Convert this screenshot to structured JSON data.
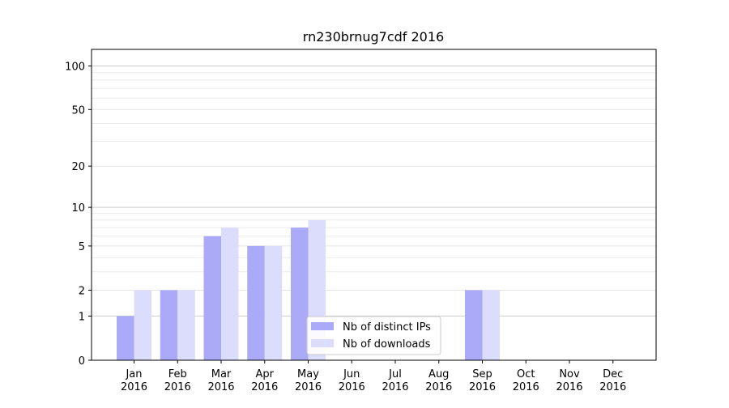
{
  "chart_data": {
    "type": "bar",
    "title": "rn230brnug7cdf 2016",
    "xlabel": "",
    "ylabel": "",
    "yscale": "symlog",
    "ylim": [
      0,
      130
    ],
    "y_ticks": [
      0,
      1,
      2,
      5,
      10,
      20,
      50,
      100
    ],
    "categories": [
      "Jan\n2016",
      "Feb\n2016",
      "Mar\n2016",
      "Apr\n2016",
      "May\n2016",
      "Jun\n2016",
      "Jul\n2016",
      "Aug\n2016",
      "Sep\n2016",
      "Oct\n2016",
      "Nov\n2016",
      "Dec\n2016"
    ],
    "series": [
      {
        "name": "Nb of distinct IPs",
        "color": "#aaaaf8",
        "values": [
          1,
          2,
          6,
          5,
          7,
          0,
          0,
          0,
          2,
          0,
          0,
          0
        ]
      },
      {
        "name": "Nb of downloads",
        "color": "#dcdcfc",
        "values": [
          2,
          2,
          7,
          5,
          8,
          0,
          0,
          0,
          2,
          0,
          0,
          0
        ]
      }
    ],
    "legend": {
      "position": "bottom-center"
    },
    "grid": true
  }
}
